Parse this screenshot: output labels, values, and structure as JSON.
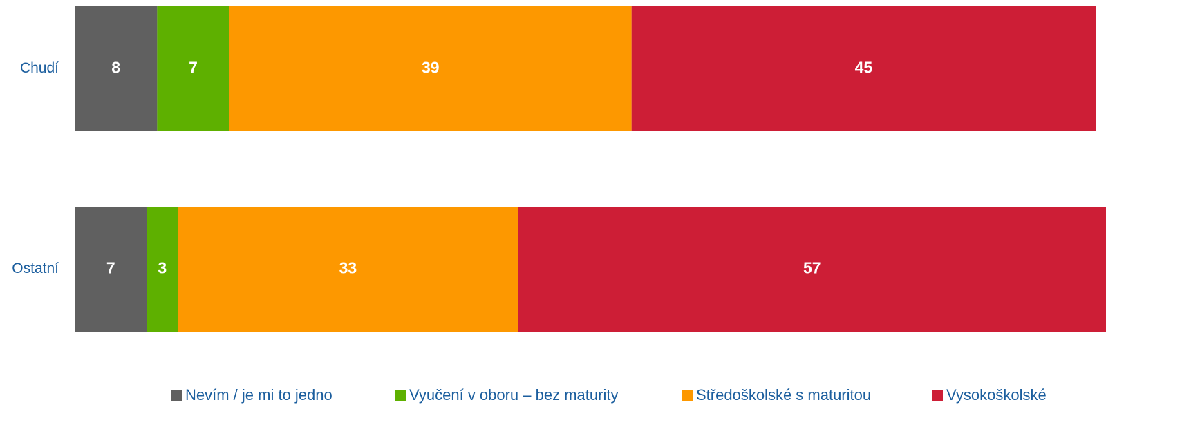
{
  "chart_data": {
    "type": "stacked-bar-horizontal",
    "categories": [
      "Chudí",
      "Ostatní"
    ],
    "series": [
      {
        "name": "Nevím / je mi to jedno",
        "color": "#606060",
        "values": [
          8,
          7
        ]
      },
      {
        "name": "Vyučení v oboru – bez maturity",
        "color": "#5eb000",
        "values": [
          7,
          3
        ]
      },
      {
        "name": "Středoškolské s maturitou",
        "color": "#fd9800",
        "values": [
          39,
          33
        ]
      },
      {
        "name": "Vysokoškolské",
        "color": "#cd1e36",
        "values": [
          45,
          57
        ]
      }
    ],
    "xlim": [
      0,
      100
    ],
    "legend": "bottom"
  }
}
